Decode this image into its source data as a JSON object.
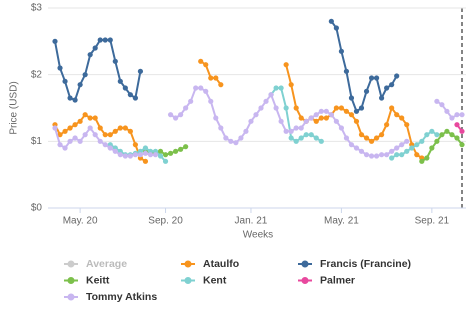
{
  "chart_data": {
    "type": "line",
    "y_label": "Price (USD)",
    "x_label": "Weeks",
    "ylim": [
      0,
      3
    ],
    "yticks": [
      {
        "value": 0,
        "label": "$0"
      },
      {
        "value": 1,
        "label": "$1"
      },
      {
        "value": 2,
        "label": "$2"
      },
      {
        "value": 3,
        "label": "$3"
      }
    ],
    "grid": true,
    "categories": [
      null,
      null,
      null,
      null,
      null,
      "May. 20",
      null,
      null,
      null,
      null,
      null,
      null,
      null,
      null,
      null,
      null,
      null,
      null,
      null,
      null,
      null,
      null,
      "Sep. 20",
      null,
      null,
      null,
      null,
      null,
      null,
      null,
      null,
      null,
      null,
      null,
      null,
      null,
      null,
      null,
      null,
      "Jan. 21",
      null,
      null,
      null,
      null,
      null,
      null,
      null,
      null,
      null,
      null,
      null,
      null,
      null,
      null,
      null,
      null,
      null,
      "May. 21",
      null,
      null,
      null,
      null,
      null,
      null,
      null,
      null,
      null,
      null,
      null,
      null,
      null,
      null,
      null,
      null,
      null,
      "Sep. 21",
      null,
      null,
      null,
      null,
      null,
      null
    ],
    "series": [
      {
        "name": "Average",
        "color": "#bbbbbb",
        "visible": false,
        "values": [
          null,
          null,
          null,
          null,
          null,
          null,
          null,
          null,
          null,
          null,
          null,
          null,
          null,
          null,
          null,
          null,
          null,
          null,
          null,
          null,
          null,
          null,
          null,
          null,
          null,
          null,
          null,
          null,
          null,
          null,
          null,
          null,
          null,
          null,
          null,
          null,
          null,
          null,
          null,
          null,
          null,
          null,
          null,
          null,
          null,
          null,
          null,
          null,
          null,
          null,
          null,
          null,
          null,
          null,
          null,
          null,
          null,
          null,
          null,
          null,
          null,
          null,
          null,
          null,
          null,
          null,
          null,
          null,
          null,
          null,
          null,
          null,
          null,
          null,
          null,
          null,
          null,
          null,
          null,
          null,
          null,
          null
        ]
      },
      {
        "name": "Ataulfo",
        "color": "#f7941e",
        "values": [
          1.25,
          1.1,
          1.15,
          1.2,
          1.25,
          1.3,
          1.4,
          1.35,
          1.35,
          1.2,
          1.1,
          1.1,
          1.15,
          1.2,
          1.2,
          1.15,
          0.95,
          0.75,
          0.7,
          null,
          null,
          null,
          null,
          null,
          null,
          null,
          null,
          null,
          null,
          2.2,
          2.15,
          1.95,
          1.95,
          1.85,
          null,
          null,
          null,
          null,
          null,
          null,
          null,
          null,
          null,
          null,
          null,
          null,
          2.15,
          1.85,
          1.5,
          1.35,
          1.3,
          1.35,
          1.3,
          1.35,
          1.35,
          1.4,
          1.5,
          1.5,
          1.45,
          1.4,
          1.3,
          1.1,
          1.05,
          1.0,
          1.05,
          1.1,
          1.25,
          1.5,
          1.4,
          1.35,
          1.25,
          0.95,
          0.8,
          0.75,
          null,
          null,
          null,
          null,
          null,
          null,
          null,
          null
        ]
      },
      {
        "name": "Francis (Francine)",
        "color": "#3d6a9b",
        "values": [
          2.5,
          2.1,
          1.9,
          1.65,
          1.62,
          1.85,
          2.0,
          2.3,
          2.4,
          2.52,
          2.52,
          2.52,
          2.2,
          1.9,
          1.8,
          1.7,
          1.65,
          2.05,
          null,
          null,
          null,
          null,
          null,
          null,
          null,
          null,
          null,
          null,
          null,
          null,
          null,
          null,
          null,
          null,
          null,
          null,
          null,
          null,
          null,
          null,
          null,
          null,
          null,
          null,
          null,
          null,
          null,
          null,
          null,
          null,
          null,
          null,
          null,
          null,
          null,
          2.8,
          2.7,
          2.35,
          2.05,
          1.65,
          1.45,
          1.5,
          1.75,
          1.95,
          1.95,
          1.65,
          1.8,
          1.85,
          1.98,
          null,
          null,
          null,
          null,
          null,
          null,
          null,
          null,
          null,
          null,
          null,
          null,
          null
        ]
      },
      {
        "name": "Keitt",
        "color": "#7cc04b",
        "values": [
          null,
          null,
          null,
          null,
          null,
          null,
          null,
          null,
          null,
          null,
          null,
          null,
          null,
          null,
          null,
          null,
          null,
          null,
          0.85,
          0.82,
          0.82,
          0.85,
          0.8,
          0.82,
          0.85,
          0.88,
          0.92,
          null,
          null,
          null,
          null,
          null,
          null,
          null,
          null,
          null,
          null,
          null,
          null,
          null,
          null,
          null,
          null,
          null,
          null,
          null,
          null,
          null,
          null,
          null,
          null,
          null,
          null,
          null,
          null,
          null,
          null,
          null,
          null,
          null,
          null,
          null,
          null,
          null,
          null,
          null,
          null,
          null,
          null,
          null,
          null,
          null,
          null,
          0.7,
          0.75,
          0.9,
          1.0,
          1.1,
          1.15,
          1.1,
          1.05,
          0.95
        ]
      },
      {
        "name": "Kent",
        "color": "#7fd1d1",
        "values": [
          null,
          null,
          null,
          null,
          null,
          null,
          null,
          null,
          null,
          null,
          null,
          0.95,
          0.9,
          0.85,
          0.8,
          0.8,
          0.82,
          0.85,
          0.9,
          0.85,
          0.85,
          0.78,
          0.7,
          null,
          null,
          null,
          null,
          null,
          null,
          null,
          null,
          null,
          null,
          null,
          null,
          null,
          null,
          null,
          null,
          null,
          null,
          null,
          null,
          1.7,
          1.8,
          1.8,
          1.5,
          1.05,
          1.0,
          1.05,
          1.1,
          1.1,
          1.05,
          1.0,
          null,
          null,
          null,
          null,
          null,
          null,
          null,
          null,
          null,
          null,
          null,
          null,
          null,
          0.75,
          0.8,
          0.8,
          0.85,
          0.9,
          0.95,
          1.0,
          1.1,
          1.15,
          1.1,
          null,
          null,
          null,
          null,
          null
        ]
      },
      {
        "name": "Palmer",
        "color": "#e8489e",
        "values": [
          null,
          null,
          null,
          null,
          null,
          null,
          null,
          null,
          null,
          null,
          null,
          null,
          null,
          null,
          null,
          null,
          null,
          null,
          null,
          null,
          null,
          null,
          null,
          null,
          null,
          null,
          null,
          null,
          null,
          null,
          null,
          null,
          null,
          null,
          null,
          null,
          null,
          null,
          null,
          null,
          null,
          null,
          null,
          null,
          null,
          null,
          null,
          null,
          null,
          null,
          null,
          null,
          null,
          null,
          null,
          null,
          null,
          null,
          null,
          null,
          null,
          null,
          null,
          null,
          null,
          null,
          null,
          null,
          null,
          null,
          null,
          null,
          null,
          null,
          null,
          null,
          null,
          null,
          null,
          null,
          1.25,
          1.15
        ]
      },
      {
        "name": "Tommy Atkins",
        "color": "#c8b6f0",
        "values": [
          1.2,
          0.95,
          0.9,
          1.0,
          1.05,
          1.0,
          1.1,
          1.2,
          1.1,
          1.0,
          0.95,
          0.9,
          0.85,
          0.8,
          0.78,
          0.78,
          0.8,
          0.8,
          0.82,
          0.8,
          0.8,
          null,
          null,
          1.4,
          1.35,
          1.4,
          1.5,
          1.6,
          1.8,
          1.8,
          1.75,
          1.6,
          1.35,
          1.2,
          1.05,
          1.0,
          0.98,
          1.05,
          1.15,
          1.3,
          1.4,
          1.5,
          1.6,
          1.7,
          1.5,
          1.3,
          1.15,
          1.15,
          1.2,
          1.2,
          1.3,
          1.35,
          1.4,
          1.45,
          1.45,
          1.4,
          1.3,
          1.2,
          1.05,
          0.95,
          0.9,
          0.85,
          0.8,
          0.78,
          0.78,
          0.8,
          0.8,
          0.85,
          0.9,
          0.95,
          1.0,
          null,
          null,
          null,
          null,
          null,
          1.6,
          1.55,
          1.45,
          1.35,
          1.4,
          1.4
        ]
      }
    ]
  }
}
